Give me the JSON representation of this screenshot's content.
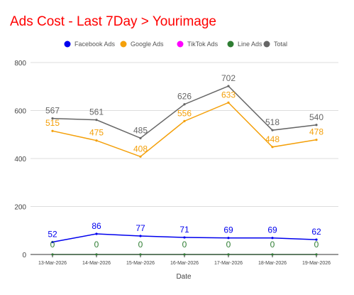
{
  "chart_data": {
    "type": "line",
    "title": "Ads Cost - Last 7Day > Yourimage",
    "xlabel": "Date",
    "ylabel": "",
    "ylim": [
      0,
      800
    ],
    "yticks": [
      "0",
      "200",
      "400",
      "600",
      "800"
    ],
    "categories": [
      "13-Mar-2026",
      "14-Mar-2026",
      "15-Mar-2026",
      "16-Mar-2026",
      "17-Mar-2026",
      "18-Mar-2026",
      "19-Mar-2026"
    ],
    "legend_position": "top",
    "grid": true,
    "series": [
      {
        "name": "Facebook Ads",
        "color": "#0000ee",
        "values": [
          52,
          86,
          77,
          71,
          69,
          69,
          62
        ]
      },
      {
        "name": "Google Ads",
        "color": "#f4a00a",
        "values": [
          515,
          475,
          408,
          556,
          633,
          448,
          478
        ]
      },
      {
        "name": "TikTok Ads",
        "color": "#ff00ff",
        "values": [
          0,
          0,
          0,
          0,
          0,
          0,
          0
        ],
        "hidden_labels": true
      },
      {
        "name": "Line Ads",
        "color": "#2e7d32",
        "values": [
          0,
          0,
          0,
          0,
          0,
          0,
          0
        ]
      },
      {
        "name": "Total",
        "color": "#666666",
        "values": [
          567,
          561,
          485,
          626,
          702,
          518,
          540
        ]
      }
    ]
  }
}
